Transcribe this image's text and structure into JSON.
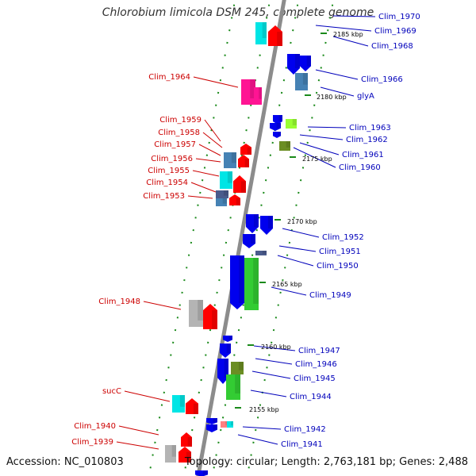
{
  "title": "Chlorobium limicola DSM 245, complete genome",
  "footer": {
    "accession": "Accession: NC_010803",
    "summary": "Topology: circular; Length: 2,763,181 bp; Genes: 2,488"
  },
  "colors": {
    "backbone": "#8c8c8c",
    "forward_label": "#cc0000",
    "reverse_label": "#0000bb",
    "tick": "#1a8a1a",
    "red": "#ff0000",
    "blue": "#0000ee",
    "cyan": "#00e5e5",
    "steelblue": "#4682b4",
    "magenta": "#ff1493",
    "gray": "#b4b4b4",
    "green": "#33cc33",
    "olive": "#6b8e23",
    "yellowgreen": "#99ff33",
    "slate": "#4a5b8c",
    "salmon": "#ff8080"
  },
  "ticks": [
    "2185 kbp",
    "2180 kbp",
    "2175 kbp",
    "2170 kbp",
    "2165 kbp",
    "2160 kbp",
    "2155 kbp"
  ],
  "forward_genes": [
    "Clim_1964",
    "Clim_1959",
    "Clim_1958",
    "Clim_1957",
    "Clim_1956",
    "Clim_1955",
    "Clim_1954",
    "Clim_1953",
    "Clim_1948",
    "sucC",
    "Clim_1940",
    "Clim_1939"
  ],
  "reverse_genes": [
    "Clim_1970",
    "Clim_1969",
    "Clim_1968",
    "Clim_1966",
    "glyA",
    "Clim_1963",
    "Clim_1962",
    "Clim_1961",
    "Clim_1960",
    "Clim_1952",
    "Clim_1951",
    "Clim_1950",
    "Clim_1949",
    "Clim_1947",
    "Clim_1946",
    "Clim_1945",
    "Clim_1944",
    "Clim_1942",
    "Clim_1941"
  ]
}
